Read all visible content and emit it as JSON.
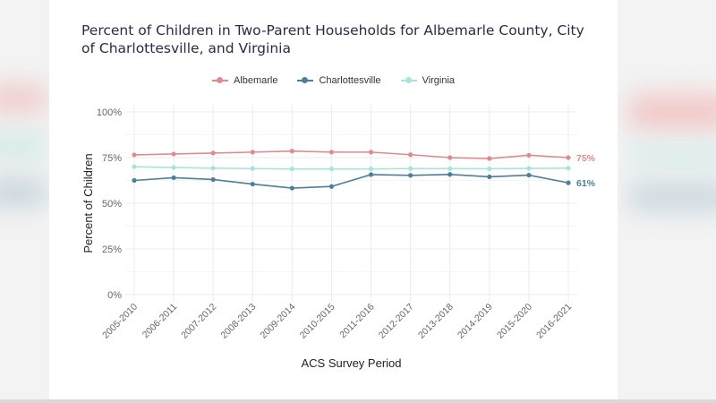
{
  "colors": {
    "albemarle": "#e08a8f",
    "charlottesville": "#4d7f99",
    "virginia": "#a8e3dc",
    "grid": "#ececec",
    "tick": "#666666"
  },
  "chart_data": {
    "type": "line",
    "title": "Percent of Children in Two-Parent Households for Albemarle County, City of Charlottesville, and Virginia",
    "xlabel": "ACS Survey Period",
    "ylabel": "Percent of Children",
    "ylim": [
      0,
      100
    ],
    "yticks": [
      "0%",
      "25%",
      "50%",
      "75%",
      "100%"
    ],
    "ytick_values": [
      0,
      25,
      50,
      75,
      100
    ],
    "legend_position": "top-center",
    "grid": true,
    "categories": [
      "2005-2010",
      "2006-2011",
      "2007-2012",
      "2008-2013",
      "2009-2014",
      "2010-2015",
      "2011-2016",
      "2012-2017",
      "2013-2018",
      "2014-2019",
      "2015-2020",
      "2016-2021"
    ],
    "series": [
      {
        "name": "Albemarle",
        "key": "albemarle",
        "values": [
          76.5,
          77,
          77.5,
          78,
          78.6,
          78,
          78,
          76.6,
          75,
          74.5,
          76.3,
          75
        ],
        "end_label": "75%"
      },
      {
        "name": "Charlottesville",
        "key": "charlottesville",
        "values": [
          62.5,
          64,
          63,
          60.5,
          58.3,
          59.2,
          65.7,
          65.3,
          65.8,
          64.5,
          65.4,
          61.2
        ],
        "end_label": "61%"
      },
      {
        "name": "Virginia",
        "key": "virginia",
        "values": [
          70,
          69.6,
          69.2,
          69,
          68.8,
          68.8,
          68.8,
          69,
          69,
          68.9,
          69.1,
          69.2
        ],
        "end_label": ""
      }
    ]
  }
}
